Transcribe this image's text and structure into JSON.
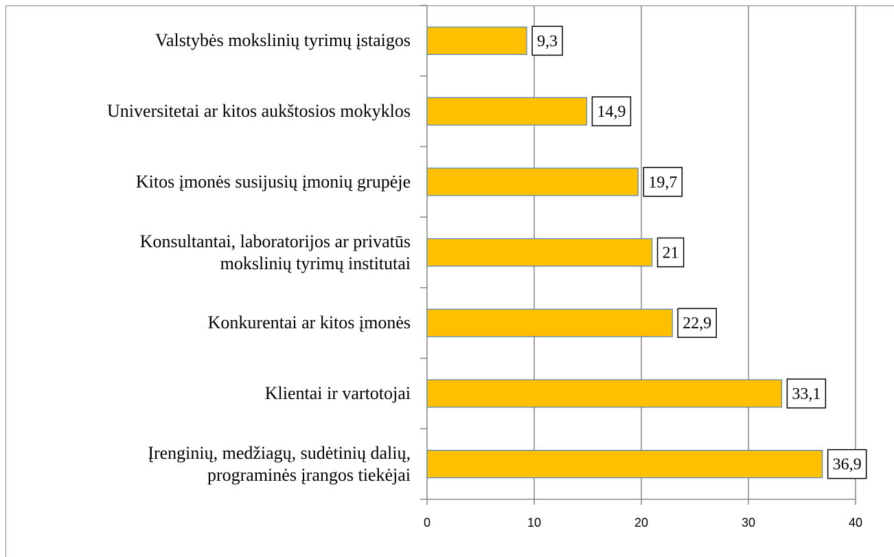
{
  "chart_data": {
    "type": "bar",
    "orientation": "horizontal",
    "categories": [
      "Valstybės mokslinių tyrimų įstaigos",
      "Universitetai ar kitos aukštosios mokyklos",
      "Kitos įmonės susijusių įmonių grupėje",
      "Konsultantai, laboratorijos ar privatūs\nmokslinių tyrimų institutai",
      "Konkurentai ar kitos įmonės",
      "Klientai ir vartotojai",
      "Įrenginių, medžiagų, sudėtinių dalių,\nprograminės įrangos tiekėjai"
    ],
    "values": [
      9.3,
      14.9,
      19.7,
      21,
      22.9,
      33.1,
      36.9
    ],
    "value_labels": [
      "9,3",
      "14,9",
      "19,7",
      "21",
      "22,9",
      "33,1",
      "36,9"
    ],
    "color": "#ffc000",
    "xlim": [
      0,
      40
    ],
    "xticks": [
      0,
      10,
      20,
      30,
      40
    ],
    "grid": true
  }
}
